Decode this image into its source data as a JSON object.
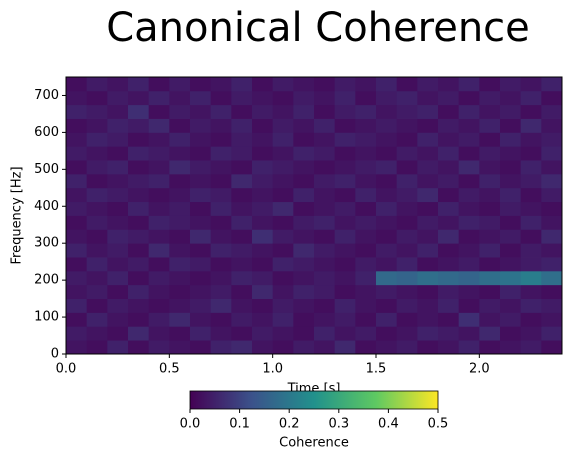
{
  "chart_data": {
    "type": "heatmap",
    "title": "Canonical Coherence",
    "xlabel": "Time [s]",
    "ylabel": "Frequency [Hz]",
    "colormap": "viridis",
    "colorbar_label": "Coherence",
    "clim": [
      0,
      0.5
    ],
    "cticks": [
      {
        "value": 0,
        "label": "0.0"
      },
      0.1,
      0.2,
      0.3,
      0.4,
      0.5
    ],
    "xlim": [
      0,
      2.4
    ],
    "ylim": [
      0,
      750
    ],
    "xticks": [
      {
        "value": 0,
        "label": "0.0"
      },
      0.5,
      {
        "value": 1,
        "label": "1.0"
      },
      1.5,
      {
        "value": 2,
        "label": "2.0"
      }
    ],
    "yticks": [
      0,
      100,
      200,
      300,
      400,
      500,
      600,
      700
    ],
    "x_edges": [
      0,
      0.1,
      0.2,
      0.3,
      0.4,
      0.5,
      0.6,
      0.7,
      0.8,
      0.9,
      1.0,
      1.1,
      1.2,
      1.3,
      1.4,
      1.5,
      1.6,
      1.7,
      1.8,
      1.9,
      2.0,
      2.1,
      2.2,
      2.3,
      2.4
    ],
    "y_edges": [
      0,
      37.5,
      75,
      112.5,
      150,
      187.5,
      225,
      262.5,
      300,
      337.5,
      375,
      412.5,
      450,
      487.5,
      525,
      562.5,
      600,
      637.5,
      675,
      712.5,
      750
    ],
    "values": [
      [
        0.03,
        0.02,
        0.05,
        0.02,
        0.04,
        0.03,
        0.02,
        0.05,
        0.06,
        0.03,
        0.02,
        0.04,
        0.03,
        0.06,
        0.02,
        0.03,
        0.04,
        0.02,
        0.03,
        0.05,
        0.02,
        0.03,
        0.04,
        0.02
      ],
      [
        0.04,
        0.03,
        0.02,
        0.06,
        0.03,
        0.02,
        0.05,
        0.03,
        0.02,
        0.04,
        0.03,
        0.02,
        0.05,
        0.03,
        0.04,
        0.02,
        0.03,
        0.05,
        0.04,
        0.03,
        0.06,
        0.02,
        0.03,
        0.05
      ],
      [
        0.02,
        0.05,
        0.03,
        0.02,
        0.04,
        0.06,
        0.03,
        0.02,
        0.04,
        0.03,
        0.05,
        0.02,
        0.03,
        0.04,
        0.02,
        0.05,
        0.02,
        0.03,
        0.02,
        0.07,
        0.03,
        0.04,
        0.02,
        0.03
      ],
      [
        0.05,
        0.02,
        0.04,
        0.03,
        0.02,
        0.03,
        0.04,
        0.06,
        0.03,
        0.02,
        0.04,
        0.03,
        0.02,
        0.05,
        0.03,
        0.02,
        0.04,
        0.03,
        0.05,
        0.02,
        0.04,
        0.03,
        0.05,
        0.04
      ],
      [
        0.03,
        0.04,
        0.02,
        0.05,
        0.03,
        0.02,
        0.03,
        0.04,
        0.02,
        0.06,
        0.03,
        0.05,
        0.04,
        0.02,
        0.03,
        0.04,
        0.03,
        0.02,
        0.04,
        0.03,
        0.02,
        0.05,
        0.03,
        0.02
      ],
      [
        0.04,
        0.03,
        0.05,
        0.02,
        0.04,
        0.03,
        0.02,
        0.03,
        0.05,
        0.04,
        0.02,
        0.03,
        0.04,
        0.03,
        0.05,
        0.17,
        0.16,
        0.18,
        0.17,
        0.16,
        0.18,
        0.19,
        0.21,
        0.18
      ],
      [
        0.02,
        0.05,
        0.03,
        0.04,
        0.02,
        0.05,
        0.04,
        0.02,
        0.03,
        0.02,
        0.05,
        0.04,
        0.03,
        0.02,
        0.04,
        0.03,
        0.05,
        0.02,
        0.03,
        0.04,
        0.02,
        0.03,
        0.04,
        0.05
      ],
      [
        0.05,
        0.03,
        0.04,
        0.02,
        0.06,
        0.03,
        0.02,
        0.05,
        0.04,
        0.03,
        0.02,
        0.06,
        0.04,
        0.03,
        0.02,
        0.04,
        0.03,
        0.05,
        0.02,
        0.03,
        0.05,
        0.02,
        0.04,
        0.03
      ],
      [
        0.03,
        0.02,
        0.05,
        0.04,
        0.03,
        0.02,
        0.06,
        0.03,
        0.02,
        0.07,
        0.04,
        0.03,
        0.02,
        0.05,
        0.03,
        0.02,
        0.04,
        0.03,
        0.06,
        0.02,
        0.03,
        0.04,
        0.02,
        0.06
      ],
      [
        0.02,
        0.04,
        0.03,
        0.02,
        0.05,
        0.04,
        0.03,
        0.02,
        0.05,
        0.03,
        0.02,
        0.04,
        0.05,
        0.03,
        0.04,
        0.03,
        0.02,
        0.04,
        0.03,
        0.05,
        0.04,
        0.02,
        0.05,
        0.03
      ],
      [
        0.04,
        0.03,
        0.02,
        0.05,
        0.03,
        0.04,
        0.02,
        0.05,
        0.03,
        0.04,
        0.06,
        0.02,
        0.03,
        0.04,
        0.02,
        0.05,
        0.03,
        0.02,
        0.05,
        0.03,
        0.02,
        0.04,
        0.03,
        0.02
      ],
      [
        0.03,
        0.05,
        0.04,
        0.03,
        0.02,
        0.03,
        0.05,
        0.04,
        0.02,
        0.03,
        0.02,
        0.05,
        0.03,
        0.02,
        0.05,
        0.03,
        0.04,
        0.06,
        0.02,
        0.04,
        0.03,
        0.05,
        0.02,
        0.04
      ],
      [
        0.05,
        0.02,
        0.03,
        0.04,
        0.05,
        0.02,
        0.03,
        0.02,
        0.06,
        0.04,
        0.03,
        0.02,
        0.04,
        0.05,
        0.03,
        0.02,
        0.05,
        0.03,
        0.04,
        0.02,
        0.05,
        0.03,
        0.04,
        0.06
      ],
      [
        0.02,
        0.04,
        0.05,
        0.02,
        0.03,
        0.06,
        0.04,
        0.03,
        0.02,
        0.05,
        0.04,
        0.03,
        0.02,
        0.03,
        0.04,
        0.05,
        0.02,
        0.04,
        0.03,
        0.06,
        0.03,
        0.02,
        0.05,
        0.03
      ],
      [
        0.04,
        0.03,
        0.02,
        0.05,
        0.04,
        0.03,
        0.02,
        0.05,
        0.04,
        0.02,
        0.03,
        0.05,
        0.04,
        0.02,
        0.03,
        0.02,
        0.04,
        0.03,
        0.05,
        0.02,
        0.04,
        0.03,
        0.02,
        0.05
      ],
      [
        0.03,
        0.05,
        0.04,
        0.02,
        0.03,
        0.05,
        0.03,
        0.02,
        0.04,
        0.03,
        0.05,
        0.02,
        0.03,
        0.05,
        0.04,
        0.03,
        0.02,
        0.05,
        0.03,
        0.04,
        0.02,
        0.05,
        0.03,
        0.04
      ],
      [
        0.02,
        0.03,
        0.05,
        0.04,
        0.06,
        0.02,
        0.04,
        0.03,
        0.05,
        0.02,
        0.04,
        0.03,
        0.05,
        0.02,
        0.03,
        0.04,
        0.03,
        0.02,
        0.04,
        0.03,
        0.05,
        0.02,
        0.06,
        0.03
      ],
      [
        0.05,
        0.04,
        0.03,
        0.07,
        0.02,
        0.04,
        0.03,
        0.05,
        0.02,
        0.04,
        0.03,
        0.05,
        0.02,
        0.04,
        0.05,
        0.03,
        0.04,
        0.05,
        0.02,
        0.05,
        0.03,
        0.04,
        0.02,
        0.04
      ],
      [
        0.03,
        0.02,
        0.04,
        0.03,
        0.05,
        0.03,
        0.05,
        0.02,
        0.04,
        0.03,
        0.02,
        0.04,
        0.03,
        0.05,
        0.02,
        0.04,
        0.05,
        0.03,
        0.04,
        0.02,
        0.04,
        0.03,
        0.05,
        0.02
      ],
      [
        0.02,
        0.04,
        0.03,
        0.05,
        0.02,
        0.04,
        0.02,
        0.03,
        0.05,
        0.02,
        0.04,
        0.03,
        0.02,
        0.04,
        0.03,
        0.05,
        0.02,
        0.04,
        0.03,
        0.05,
        0.02,
        0.04,
        0.03,
        0.05
      ]
    ]
  }
}
